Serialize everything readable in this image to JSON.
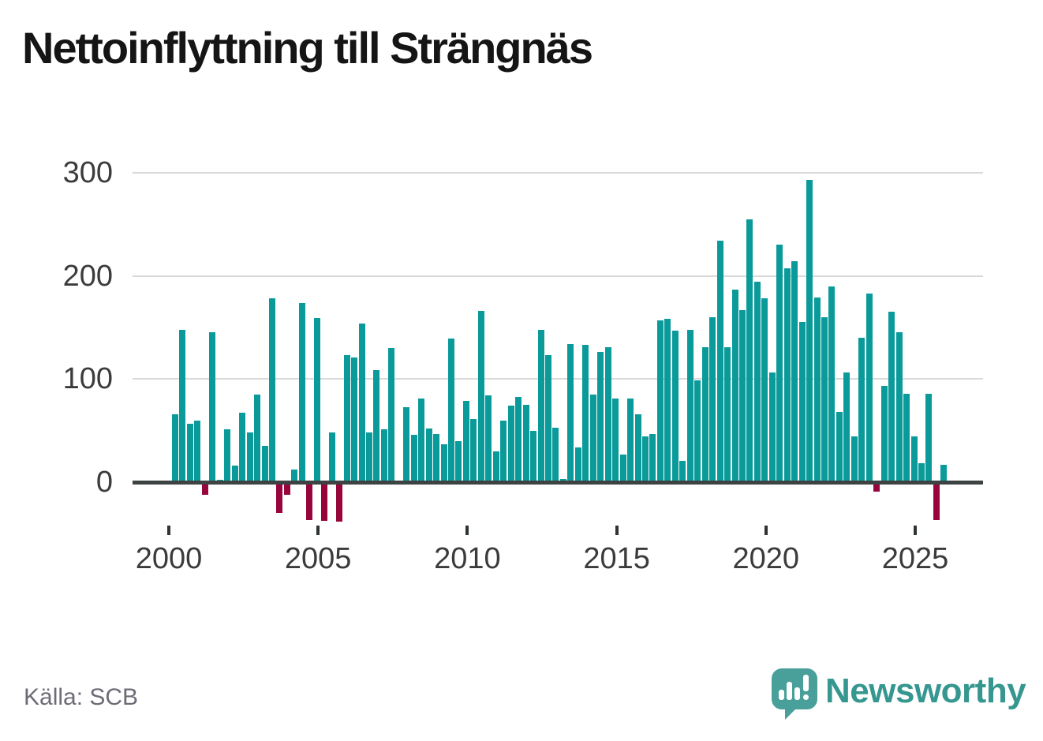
{
  "chart": {
    "title": "Nettoinflyttning till Strängnäs",
    "colors": {
      "positive_bar": "#0b9a9a",
      "negative_bar": "#98053c",
      "axis": "#3d4243",
      "grid": "#d9d9d9",
      "tick": "#2f3333",
      "axis_text": "#3c3c3c",
      "muted_text": "#6c6c76",
      "logo_bubble": "#49a09b",
      "logo_wordmark": "#35978f"
    }
  },
  "chart_data": {
    "type": "bar",
    "title": "Nettoinflyttning till Strängnäs",
    "frequency": "quarterly",
    "x_start": "2000 Q1",
    "x_end": "2025 Q4",
    "x_tick_labels": [
      "2000",
      "2005",
      "2010",
      "2015",
      "2020",
      "2025"
    ],
    "x_tick_years": [
      2000,
      2005,
      2010,
      2015,
      2020,
      2025
    ],
    "y_ticks": [
      0,
      100,
      200,
      300
    ],
    "ylim": [
      -45,
      310
    ],
    "grid": "horizontal",
    "legend": "none",
    "series": [
      {
        "name": "Nettoinflyttning",
        "values_by_year": [
          {
            "year": 2000,
            "q": [
              66,
              148,
              57,
              60
            ]
          },
          {
            "year": 2001,
            "q": [
              -11,
              145,
              2,
              51
            ]
          },
          {
            "year": 2002,
            "q": [
              16,
              67,
              48,
              85
            ]
          },
          {
            "year": 2003,
            "q": [
              35,
              178,
              -28,
              -11
            ]
          },
          {
            "year": 2004,
            "q": [
              12,
              174,
              -35,
              159
            ]
          },
          {
            "year": 2005,
            "q": [
              -36,
              48,
              -37,
              123
            ]
          },
          {
            "year": 2006,
            "q": [
              121,
              154,
              48,
              109
            ]
          },
          {
            "year": 2007,
            "q": [
              51,
              130,
              0,
              73
            ]
          },
          {
            "year": 2008,
            "q": [
              46,
              81,
              52,
              47
            ]
          },
          {
            "year": 2009,
            "q": [
              37,
              139,
              40,
              79
            ]
          },
          {
            "year": 2010,
            "q": [
              61,
              166,
              84,
              30
            ]
          },
          {
            "year": 2011,
            "q": [
              60,
              74,
              83,
              75
            ]
          },
          {
            "year": 2012,
            "q": [
              50,
              148,
              123,
              53
            ]
          },
          {
            "year": 2013,
            "q": [
              3,
              134,
              34,
              133
            ]
          },
          {
            "year": 2014,
            "q": [
              85,
              126,
              131,
              81
            ]
          },
          {
            "year": 2015,
            "q": [
              27,
              81,
              66,
              44
            ]
          },
          {
            "year": 2016,
            "q": [
              47,
              157,
              158,
              147
            ]
          },
          {
            "year": 2017,
            "q": [
              21,
              148,
              99,
              131
            ]
          },
          {
            "year": 2018,
            "q": [
              160,
              234,
              131,
              187
            ]
          },
          {
            "year": 2019,
            "q": [
              167,
              255,
              194,
              178
            ]
          },
          {
            "year": 2020,
            "q": [
              106,
              230,
              207,
              214
            ]
          },
          {
            "year": 2021,
            "q": [
              155,
              293,
              179,
              160
            ]
          },
          {
            "year": 2022,
            "q": [
              190,
              68,
              106,
              44
            ]
          },
          {
            "year": 2023,
            "q": [
              140,
              183,
              -8,
              93
            ]
          },
          {
            "year": 2024,
            "q": [
              165,
              145,
              86,
              44
            ]
          },
          {
            "year": 2025,
            "q": [
              18,
              86,
              -35,
              17
            ]
          }
        ]
      }
    ]
  },
  "footer": {
    "source": "Källa: SCB",
    "brand": "Newsworthy"
  }
}
